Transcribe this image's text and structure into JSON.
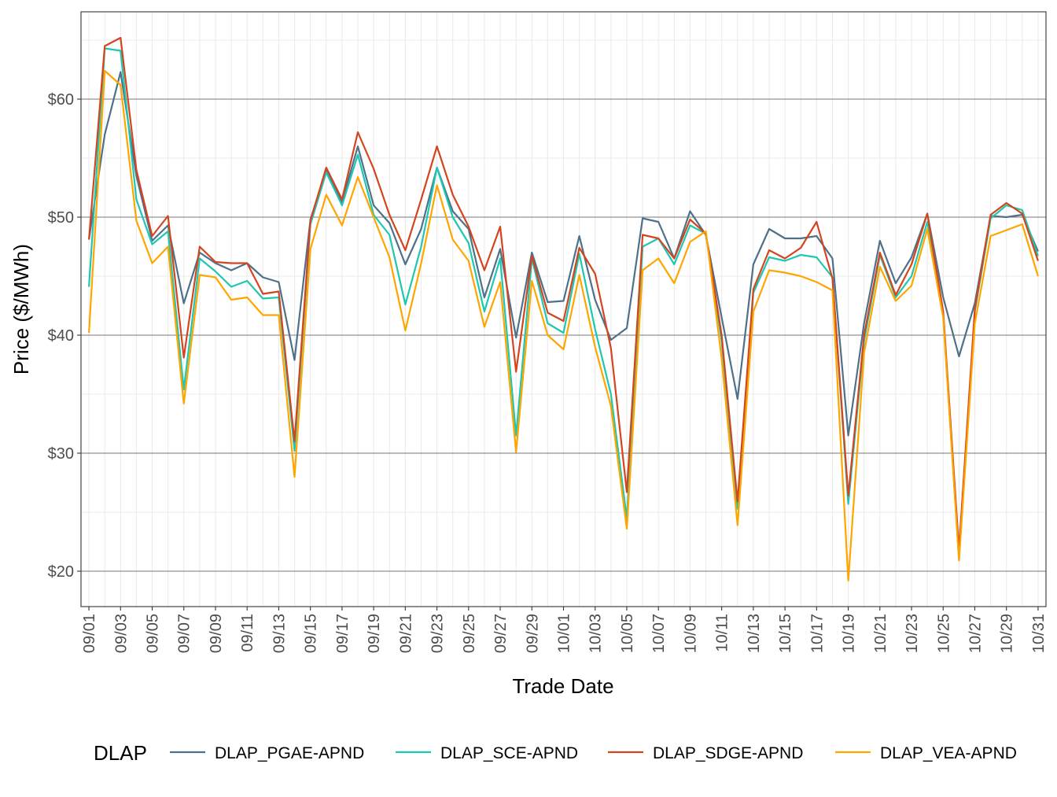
{
  "chart_data": {
    "type": "line",
    "xlabel": "Trade Date",
    "ylabel": "Price ($/MWh)",
    "ylim": [
      17,
      67.4
    ],
    "y_ticks": [
      20,
      30,
      40,
      50,
      60
    ],
    "y_tick_labels": [
      "$20",
      "$30",
      "$40",
      "$50",
      "$60"
    ],
    "grid": true,
    "legend": {
      "title": "DLAP",
      "position": "bottom"
    },
    "x": [
      "09/01",
      "09/02",
      "09/03",
      "09/04",
      "09/05",
      "09/06",
      "09/07",
      "09/08",
      "09/09",
      "09/10",
      "09/11",
      "09/12",
      "09/13",
      "09/14",
      "09/15",
      "09/16",
      "09/17",
      "09/18",
      "09/19",
      "09/20",
      "09/21",
      "09/22",
      "09/23",
      "09/24",
      "09/25",
      "09/26",
      "09/27",
      "09/28",
      "09/29",
      "09/30",
      "10/01",
      "10/02",
      "10/03",
      "10/04",
      "10/05",
      "10/06",
      "10/07",
      "10/08",
      "10/09",
      "10/10",
      "10/11",
      "10/12",
      "10/13",
      "10/14",
      "10/15",
      "10/16",
      "10/17",
      "10/18",
      "10/19",
      "10/20",
      "10/21",
      "10/22",
      "10/23",
      "10/24",
      "10/25",
      "10/26",
      "10/27",
      "10/28",
      "10/29",
      "10/30",
      "10/31"
    ],
    "x_tick_labels": [
      "09/01",
      "09/03",
      "09/05",
      "09/07",
      "09/09",
      "09/11",
      "09/13",
      "09/15",
      "09/17",
      "09/19",
      "09/21",
      "09/23",
      "09/25",
      "09/27",
      "09/29",
      "10/01",
      "10/03",
      "10/05",
      "10/07",
      "10/09",
      "10/11",
      "10/13",
      "10/15",
      "10/17",
      "10/19",
      "10/21",
      "10/23",
      "10/25",
      "10/27",
      "10/29",
      "10/31"
    ],
    "series": [
      {
        "name": "DLAP_PGAE-APND",
        "color": "#4e7189",
        "values": [
          48.1,
          57.0,
          62.3,
          53.5,
          48.0,
          49.3,
          42.7,
          47.0,
          46.1,
          45.5,
          46.1,
          44.9,
          44.5,
          37.9,
          49.8,
          54.0,
          51.3,
          56.0,
          51.0,
          49.5,
          46.0,
          49.0,
          54.2,
          50.5,
          49.0,
          43.2,
          47.3,
          39.8,
          47.0,
          42.8,
          42.9,
          48.4,
          43.0,
          39.6,
          40.6,
          49.9,
          49.6,
          46.5,
          50.5,
          48.5,
          41.5,
          34.6,
          46.0,
          49.0,
          48.2,
          48.2,
          48.4,
          46.5,
          31.5,
          41.0,
          48.0,
          44.4,
          46.6,
          50.3,
          43.2,
          38.2,
          42.7,
          50.1,
          50.0,
          50.2,
          47.1
        ]
      },
      {
        "name": "DLAP_SCE-APND",
        "color": "#1ec7b0",
        "values": [
          44.1,
          64.3,
          64.1,
          51.5,
          47.7,
          48.8,
          35.4,
          46.5,
          45.4,
          44.1,
          44.6,
          43.1,
          43.2,
          30.2,
          49.4,
          53.8,
          51.0,
          55.3,
          50.2,
          48.5,
          42.6,
          47.5,
          54.2,
          50.0,
          47.8,
          42.0,
          46.5,
          31.5,
          46.5,
          41.0,
          40.2,
          46.9,
          40.5,
          35.0,
          24.5,
          47.5,
          48.2,
          46.0,
          49.3,
          48.6,
          39.5,
          25.3,
          43.6,
          46.6,
          46.3,
          46.8,
          46.6,
          44.9,
          25.7,
          39.5,
          46.8,
          43.2,
          45.0,
          49.6,
          41.7,
          21.0,
          42.0,
          49.9,
          51.0,
          50.6,
          46.7
        ]
      },
      {
        "name": "DLAP_SDGE-APND",
        "color": "#d4451f",
        "values": [
          48.1,
          64.5,
          65.2,
          54.0,
          48.4,
          50.1,
          38.1,
          47.5,
          46.2,
          46.1,
          46.1,
          43.5,
          43.7,
          31.0,
          49.7,
          54.2,
          51.5,
          57.2,
          54.1,
          50.2,
          47.2,
          51.5,
          56.0,
          51.9,
          49.2,
          45.5,
          49.2,
          36.9,
          46.7,
          41.9,
          41.2,
          47.4,
          45.2,
          38.9,
          26.7,
          48.5,
          48.2,
          46.5,
          49.8,
          48.6,
          40.0,
          25.9,
          43.9,
          47.2,
          46.5,
          47.4,
          49.6,
          44.8,
          26.4,
          40.0,
          47.0,
          43.4,
          46.0,
          50.3,
          42.0,
          21.8,
          42.2,
          50.2,
          51.2,
          50.3,
          46.3
        ]
      },
      {
        "name": "DLAP_VEA-APND",
        "color": "#ffa500",
        "values": [
          40.2,
          62.4,
          61.2,
          49.7,
          46.1,
          47.5,
          34.2,
          45.1,
          44.9,
          43.0,
          43.2,
          41.7,
          41.7,
          28.0,
          47.3,
          51.9,
          49.3,
          53.4,
          50.0,
          46.6,
          40.4,
          46.1,
          52.7,
          48.1,
          46.3,
          40.7,
          44.5,
          30.1,
          44.6,
          40.0,
          38.8,
          45.1,
          39.0,
          34.0,
          23.6,
          45.5,
          46.5,
          44.4,
          47.9,
          48.8,
          38.0,
          23.9,
          42.0,
          45.5,
          45.3,
          45.0,
          44.5,
          43.8,
          19.2,
          38.5,
          45.8,
          42.9,
          44.2,
          49.0,
          41.5,
          20.9,
          41.0,
          48.4,
          48.9,
          49.4,
          45.0
        ]
      }
    ]
  }
}
